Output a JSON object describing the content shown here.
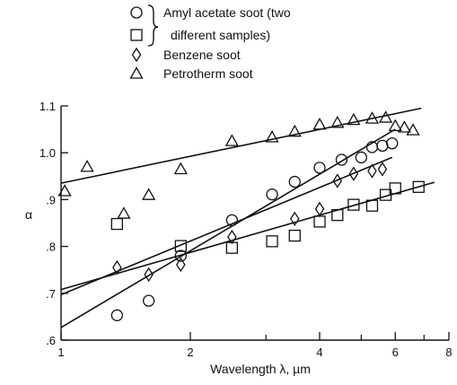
{
  "chart_data": {
    "type": "scatter",
    "xlabel": "Wavelength  λ,  µm",
    "ylabel": "α",
    "x_scale": "log",
    "xlim": [
      1,
      8
    ],
    "ylim": [
      0.6,
      1.1
    ],
    "x_ticks_major": [
      1,
      2,
      4,
      6,
      8
    ],
    "x_ticks_minor": [
      3,
      5,
      7
    ],
    "y_ticks": [
      {
        "value": 0.6,
        "label": ".6"
      },
      {
        "value": 0.7,
        "label": ".7"
      },
      {
        "value": 0.8,
        "label": ".8"
      },
      {
        "value": 0.9,
        "label": ".9"
      },
      {
        "value": 1.0,
        "label": "1.0"
      },
      {
        "value": 1.1,
        "label": "1.1"
      }
    ],
    "grid": false,
    "legend_position": "top-center",
    "legend": {
      "brace_group": [
        {
          "marker": "circle",
          "label": "Amyl acetate soot (two"
        },
        {
          "marker": "square",
          "label": "different samples)"
        }
      ],
      "items": [
        {
          "marker": "diamond",
          "label": "Benzene soot"
        },
        {
          "marker": "triangle",
          "label": "Petrotherm soot"
        }
      ]
    },
    "series": [
      {
        "marker": "circle",
        "points": [
          [
            1.35,
            0.653
          ],
          [
            1.6,
            0.684
          ],
          [
            1.9,
            0.78
          ],
          [
            2.5,
            0.856
          ],
          [
            3.1,
            0.911
          ],
          [
            3.5,
            0.938
          ],
          [
            4.0,
            0.968
          ],
          [
            4.5,
            0.985
          ],
          [
            5.0,
            0.99
          ],
          [
            5.3,
            1.012
          ],
          [
            5.6,
            1.015
          ],
          [
            5.9,
            1.02
          ]
        ]
      },
      {
        "marker": "square",
        "points": [
          [
            1.35,
            0.848
          ],
          [
            1.9,
            0.801
          ],
          [
            2.5,
            0.797
          ],
          [
            3.1,
            0.811
          ],
          [
            3.5,
            0.823
          ],
          [
            4.0,
            0.853
          ],
          [
            4.4,
            0.867
          ],
          [
            4.8,
            0.889
          ],
          [
            5.3,
            0.887
          ],
          [
            5.7,
            0.91
          ],
          [
            6.0,
            0.924
          ],
          [
            6.8,
            0.927
          ]
        ]
      },
      {
        "marker": "diamond",
        "points": [
          [
            1.35,
            0.755
          ],
          [
            1.6,
            0.74
          ],
          [
            1.9,
            0.761
          ],
          [
            2.5,
            0.82
          ],
          [
            3.5,
            0.859
          ],
          [
            4.0,
            0.88
          ],
          [
            4.4,
            0.94
          ],
          [
            4.8,
            0.955
          ],
          [
            5.3,
            0.961
          ],
          [
            5.6,
            0.965
          ]
        ]
      },
      {
        "marker": "triangle",
        "points": [
          [
            1.02,
            0.918
          ],
          [
            1.15,
            0.97
          ],
          [
            1.4,
            0.87
          ],
          [
            1.6,
            0.91
          ],
          [
            1.9,
            0.965
          ],
          [
            2.5,
            1.025
          ],
          [
            3.1,
            1.033
          ],
          [
            3.5,
            1.045
          ],
          [
            4.0,
            1.06
          ],
          [
            4.4,
            1.064
          ],
          [
            4.8,
            1.07
          ],
          [
            5.3,
            1.073
          ],
          [
            5.7,
            1.075
          ],
          [
            6.0,
            1.057
          ],
          [
            6.3,
            1.054
          ],
          [
            6.6,
            1.048
          ]
        ]
      }
    ],
    "fit_lines": [
      {
        "points": [
          [
            1.0,
            0.935
          ],
          [
            6.9,
            1.095
          ]
        ]
      },
      {
        "points": [
          [
            1.0,
            0.627
          ],
          [
            6.0,
            1.05
          ]
        ]
      },
      {
        "points": [
          [
            1.0,
            0.697
          ],
          [
            5.9,
            0.99
          ]
        ]
      },
      {
        "points": [
          [
            1.0,
            0.708
          ],
          [
            7.4,
            0.937
          ]
        ]
      }
    ]
  }
}
